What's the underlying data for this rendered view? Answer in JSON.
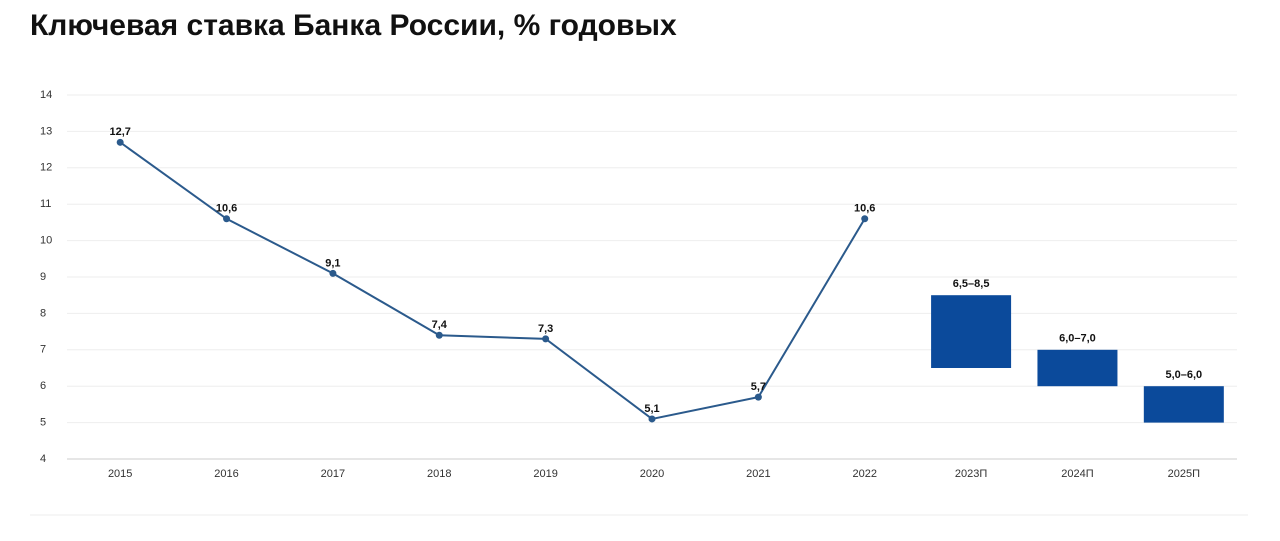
{
  "chart_data": {
    "type": "line",
    "title": "Ключевая ставка Банка России, % годовых",
    "categories": [
      "2015",
      "2016",
      "2017",
      "2018",
      "2019",
      "2020",
      "2021",
      "2022",
      "2023П",
      "2024П",
      "2025П"
    ],
    "series": [
      {
        "type": "line",
        "color": "#2b5a8c",
        "values": [
          12.7,
          10.6,
          9.1,
          7.4,
          7.3,
          5.1,
          5.7,
          10.6,
          null,
          null,
          null
        ],
        "value_labels": [
          "12,7",
          "10,6",
          "9,1",
          "7,4",
          "7,3",
          "5,1",
          "5,7",
          "10,6",
          null,
          null,
          null
        ]
      },
      {
        "type": "bar",
        "color": "#0b4a9b",
        "low": [
          null,
          null,
          null,
          null,
          null,
          null,
          null,
          null,
          6.5,
          6.0,
          5.0
        ],
        "high": [
          null,
          null,
          null,
          null,
          null,
          null,
          null,
          null,
          8.5,
          7.0,
          6.0
        ],
        "value_labels": [
          null,
          null,
          null,
          null,
          null,
          null,
          null,
          null,
          "6,5–8,5",
          "6,0–7,0",
          "5,0–6,0"
        ]
      }
    ],
    "ylim": [
      4,
      14
    ],
    "yticks": [
      4,
      5,
      6,
      7,
      8,
      9,
      10,
      11,
      12,
      13,
      14
    ],
    "grid": true
  }
}
